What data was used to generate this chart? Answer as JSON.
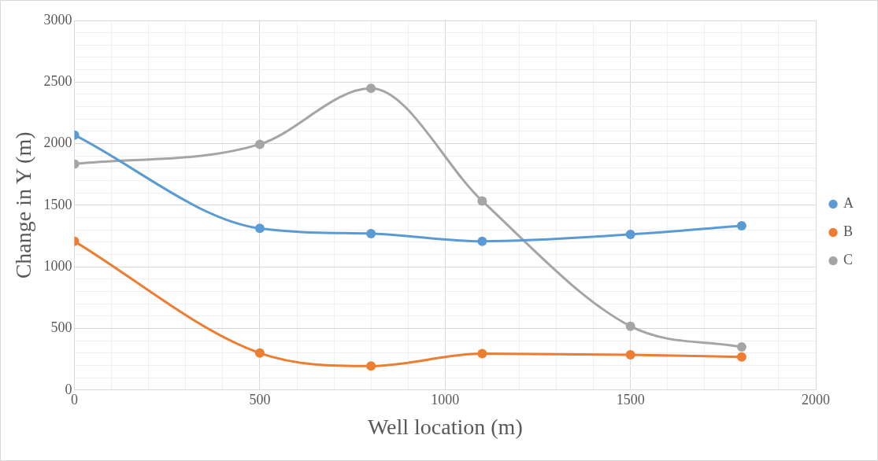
{
  "chart_data": {
    "type": "line",
    "xlabel": "Well location (m)",
    "ylabel": "Change in Y (m)",
    "x": [
      0,
      500,
      800,
      1100,
      1500,
      1800
    ],
    "series": [
      {
        "name": "A",
        "color": "#5b9bd5",
        "values": [
          2070,
          1312,
          1270,
          1207,
          1263,
          1333
        ]
      },
      {
        "name": "B",
        "color": "#ed7d31",
        "values": [
          1207,
          300,
          195,
          295,
          286,
          268
        ]
      },
      {
        "name": "C",
        "color": "#a5a5a5",
        "values": [
          1835,
          1995,
          2449,
          1535,
          518,
          350
        ]
      }
    ],
    "xlim": [
      0,
      2000
    ],
    "xticks": [
      0,
      {
        "value": 100,
        "label": null
      },
      {
        "value": 200,
        "label": null
      },
      {
        "value": 300,
        "label": null
      },
      {
        "value": 400,
        "label": null
      },
      500,
      {
        "value": 600,
        "label": null
      },
      {
        "value": 700,
        "label": null
      },
      {
        "value": 800,
        "label": null
      },
      {
        "value": 900,
        "label": null
      },
      1000,
      {
        "value": 1100,
        "label": null
      },
      {
        "value": 1200,
        "label": null
      },
      {
        "value": 1300,
        "label": null
      },
      {
        "value": 1400,
        "label": null
      },
      1500,
      {
        "value": 1600,
        "label": null
      },
      {
        "value": 1700,
        "label": null
      },
      {
        "value": 1800,
        "label": null
      },
      {
        "value": 1900,
        "label": null
      },
      2000
    ],
    "ylim": [
      0,
      3000
    ],
    "yticks": [
      0,
      {
        "value": 100,
        "label": null
      },
      {
        "value": 200,
        "label": null
      },
      {
        "value": 300,
        "label": null
      },
      {
        "value": 400,
        "label": null
      },
      500,
      {
        "value": 600,
        "label": null
      },
      {
        "value": 700,
        "label": null
      },
      {
        "value": 800,
        "label": null
      },
      {
        "value": 900,
        "label": null
      },
      1000,
      {
        "value": 1100,
        "label": null
      },
      {
        "value": 1200,
        "label": null
      },
      {
        "value": 1300,
        "label": null
      },
      {
        "value": 1400,
        "label": null
      },
      1500,
      {
        "value": 1600,
        "label": null
      },
      {
        "value": 1700,
        "label": null
      },
      {
        "value": 1800,
        "label": null
      },
      {
        "value": 1900,
        "label": null
      },
      2000,
      {
        "value": 2100,
        "label": null
      },
      {
        "value": 2200,
        "label": null
      },
      {
        "value": 2300,
        "label": null
      },
      {
        "value": 2400,
        "label": null
      },
      2500,
      {
        "value": 2600,
        "label": null
      },
      {
        "value": 2700,
        "label": null
      },
      {
        "value": 2800,
        "label": null
      },
      {
        "value": 2900,
        "label": null
      },
      3000
    ],
    "grid": true,
    "legend": "right",
    "marker": "circle",
    "line_style": "solid"
  }
}
